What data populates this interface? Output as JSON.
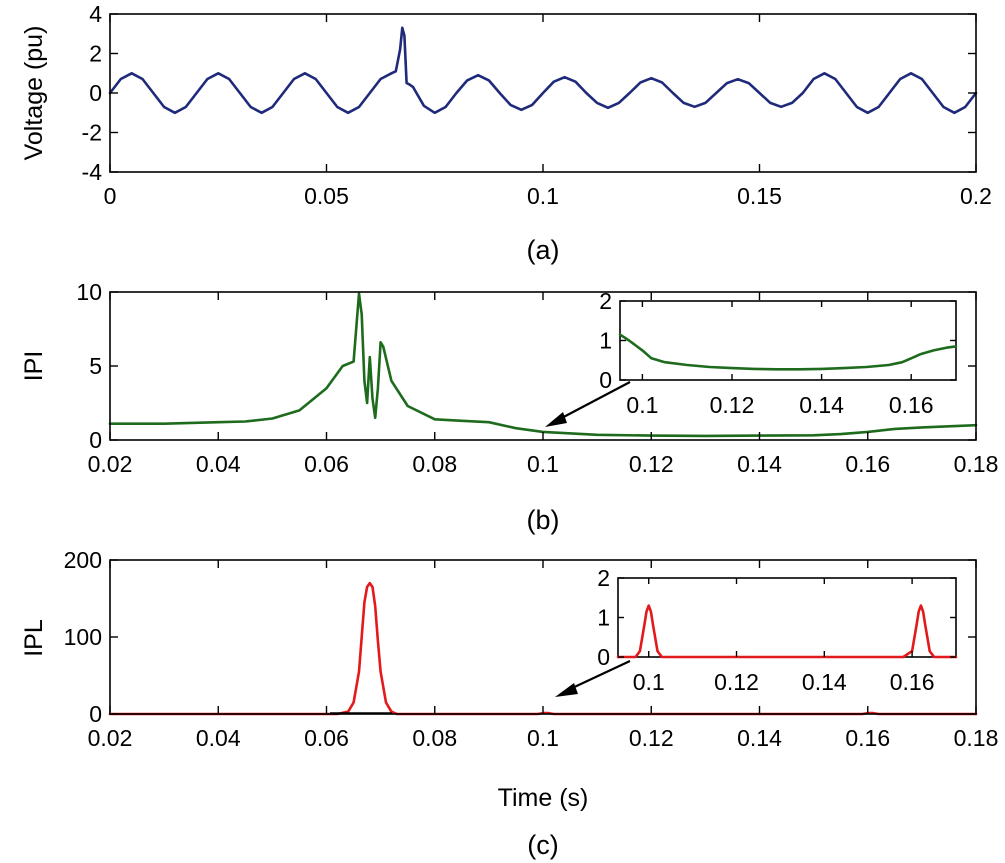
{
  "chart_data": [
    {
      "id": "a",
      "type": "line",
      "panel_label": "(a)",
      "xlabel": "",
      "ylabel": "Voltage (pu)",
      "xlim": [
        0,
        0.2
      ],
      "ylim": [
        -4,
        4
      ],
      "xticks": [
        0,
        0.05,
        0.1,
        0.15,
        0.2
      ],
      "xtick_labels": [
        "0",
        "0.05",
        "0.1",
        "0.15",
        "0.2"
      ],
      "yticks": [
        -4,
        -2,
        0,
        2,
        4
      ],
      "ytick_labels": [
        "-4",
        "-2",
        "0",
        "2",
        "4"
      ],
      "series": [
        {
          "color": "#1f2a7a",
          "x": [
            0,
            0.0025,
            0.005,
            0.0075,
            0.01,
            0.0125,
            0.015,
            0.0175,
            0.02,
            0.0225,
            0.025,
            0.0275,
            0.03,
            0.0325,
            0.035,
            0.0375,
            0.04,
            0.0425,
            0.045,
            0.0475,
            0.05,
            0.0525,
            0.055,
            0.0575,
            0.06,
            0.0625,
            0.065,
            0.066,
            0.067,
            0.0675,
            0.068,
            0.0685,
            0.069,
            0.07,
            0.0725,
            0.075,
            0.0775,
            0.08,
            0.0825,
            0.085,
            0.0875,
            0.09,
            0.0925,
            0.095,
            0.0975,
            0.1,
            0.1025,
            0.105,
            0.1075,
            0.11,
            0.1125,
            0.115,
            0.1175,
            0.12,
            0.1225,
            0.125,
            0.1275,
            0.13,
            0.1325,
            0.135,
            0.1375,
            0.14,
            0.1425,
            0.145,
            0.1475,
            0.15,
            0.1525,
            0.155,
            0.1575,
            0.16,
            0.1625,
            0.165,
            0.1675,
            0.17,
            0.1725,
            0.175,
            0.1775,
            0.18,
            0.1825,
            0.185,
            0.1875,
            0.19,
            0.1925,
            0.195,
            0.1975,
            0.2
          ],
          "y": [
            0,
            0.71,
            1.0,
            0.71,
            0,
            -0.71,
            -1.0,
            -0.71,
            0,
            0.71,
            1.0,
            0.71,
            0,
            -0.71,
            -1.0,
            -0.71,
            0,
            0.71,
            1.0,
            0.71,
            0,
            -0.71,
            -1.0,
            -0.71,
            0,
            0.71,
            1.0,
            1.1,
            2.2,
            3.3,
            2.9,
            0.5,
            0.45,
            0.3,
            -0.65,
            -1.0,
            -0.71,
            0,
            0.64,
            0.9,
            0.64,
            0,
            -0.6,
            -0.85,
            -0.6,
            0,
            0.57,
            0.8,
            0.57,
            0,
            -0.5,
            -0.75,
            -0.5,
            0,
            0.53,
            0.75,
            0.53,
            0,
            -0.5,
            -0.7,
            -0.5,
            0,
            0.5,
            0.7,
            0.5,
            0,
            -0.5,
            -0.7,
            -0.5,
            0,
            0.71,
            1.0,
            0.71,
            0,
            -0.71,
            -1.0,
            -0.71,
            0,
            0.71,
            1.0,
            0.71,
            0,
            -0.71,
            -1.0,
            -0.71,
            0
          ]
        }
      ]
    },
    {
      "id": "b",
      "type": "line",
      "panel_label": "(b)",
      "xlabel": "",
      "ylabel": "IPI",
      "xlim": [
        0.02,
        0.18
      ],
      "ylim": [
        0,
        10
      ],
      "xticks": [
        0.02,
        0.04,
        0.06,
        0.08,
        0.1,
        0.12,
        0.14,
        0.16,
        0.18
      ],
      "xtick_labels": [
        "0.02",
        "0.04",
        "0.06",
        "0.08",
        "0.1",
        "0.12",
        "0.14",
        "0.16",
        "0.18"
      ],
      "yticks": [
        0,
        5,
        10
      ],
      "ytick_labels": [
        "0",
        "5",
        "10"
      ],
      "series": [
        {
          "color": "#1e6b1e",
          "x": [
            0.02,
            0.03,
            0.04,
            0.045,
            0.05,
            0.055,
            0.06,
            0.063,
            0.065,
            0.066,
            0.0665,
            0.067,
            0.0675,
            0.068,
            0.0685,
            0.069,
            0.0695,
            0.07,
            0.0705,
            0.072,
            0.075,
            0.08,
            0.085,
            0.09,
            0.095,
            0.1,
            0.11,
            0.12,
            0.13,
            0.14,
            0.15,
            0.155,
            0.16,
            0.165,
            0.17,
            0.18
          ],
          "y": [
            1.1,
            1.1,
            1.2,
            1.25,
            1.45,
            2.0,
            3.5,
            5.0,
            5.3,
            9.9,
            8.5,
            4.0,
            2.5,
            5.6,
            2.8,
            1.5,
            3.5,
            6.6,
            6.3,
            4.0,
            2.3,
            1.4,
            1.3,
            1.2,
            0.8,
            0.55,
            0.35,
            0.3,
            0.28,
            0.3,
            0.32,
            0.4,
            0.55,
            0.75,
            0.85,
            1.0
          ]
        }
      ],
      "inset": {
        "xlim": [
          0.095,
          0.17
        ],
        "ylim": [
          0,
          2
        ],
        "xticks": [
          0.1,
          0.12,
          0.14,
          0.16
        ],
        "xtick_labels": [
          "0.1",
          "0.12",
          "0.14",
          "0.16"
        ],
        "yticks": [
          0,
          1,
          2
        ],
        "ytick_labels": [
          "0",
          "1",
          "2"
        ],
        "x": [
          0.095,
          0.097,
          0.1,
          0.102,
          0.105,
          0.11,
          0.115,
          0.12,
          0.125,
          0.13,
          0.135,
          0.14,
          0.145,
          0.15,
          0.155,
          0.158,
          0.16,
          0.162,
          0.165,
          0.168,
          0.17
        ],
        "y": [
          1.15,
          1.0,
          0.75,
          0.55,
          0.45,
          0.38,
          0.33,
          0.3,
          0.28,
          0.27,
          0.27,
          0.28,
          0.3,
          0.33,
          0.38,
          0.45,
          0.55,
          0.65,
          0.75,
          0.82,
          0.85
        ]
      }
    },
    {
      "id": "c",
      "type": "line",
      "panel_label": "(c)",
      "xlabel": "Time (s)",
      "ylabel": "IPL",
      "xlim": [
        0.02,
        0.18
      ],
      "ylim": [
        0,
        200
      ],
      "xticks": [
        0.02,
        0.04,
        0.06,
        0.08,
        0.1,
        0.12,
        0.14,
        0.16,
        0.18
      ],
      "xtick_labels": [
        "0.02",
        "0.04",
        "0.06",
        "0.08",
        "0.1",
        "0.12",
        "0.14",
        "0.16",
        "0.18"
      ],
      "yticks": [
        0,
        100,
        200
      ],
      "ytick_labels": [
        "0",
        "100",
        "200"
      ],
      "series": [
        {
          "color": "#e31a1c",
          "x": [
            0.02,
            0.062,
            0.064,
            0.065,
            0.066,
            0.0665,
            0.067,
            0.0675,
            0.068,
            0.0685,
            0.069,
            0.0695,
            0.07,
            0.071,
            0.072,
            0.073,
            0.099,
            0.1,
            0.101,
            0.102,
            0.159,
            0.16,
            0.161,
            0.162,
            0.18
          ],
          "y": [
            0,
            0,
            3,
            15,
            55,
            100,
            145,
            165,
            170,
            165,
            140,
            95,
            55,
            15,
            3,
            0,
            0,
            1.2,
            1.2,
            0,
            0,
            1.2,
            1.2,
            0,
            0
          ]
        }
      ],
      "inset": {
        "xlim": [
          0.093,
          0.17
        ],
        "ylim": [
          0,
          2
        ],
        "xticks": [
          0.1,
          0.12,
          0.14,
          0.16
        ],
        "xtick_labels": [
          "0.1",
          "0.12",
          "0.14",
          "0.16"
        ],
        "yticks": [
          0,
          1,
          2
        ],
        "ytick_labels": [
          "0",
          "1",
          "2"
        ],
        "x": [
          0.093,
          0.097,
          0.098,
          0.099,
          0.0995,
          0.1,
          0.1005,
          0.101,
          0.102,
          0.103,
          0.105,
          0.158,
          0.16,
          0.161,
          0.1615,
          0.162,
          0.1625,
          0.163,
          0.164,
          0.165,
          0.17
        ],
        "y": [
          0,
          0,
          0.15,
          0.8,
          1.15,
          1.3,
          1.15,
          0.8,
          0.15,
          0,
          0,
          0,
          0.15,
          0.8,
          1.15,
          1.3,
          1.15,
          0.8,
          0.15,
          0,
          0
        ]
      }
    }
  ]
}
